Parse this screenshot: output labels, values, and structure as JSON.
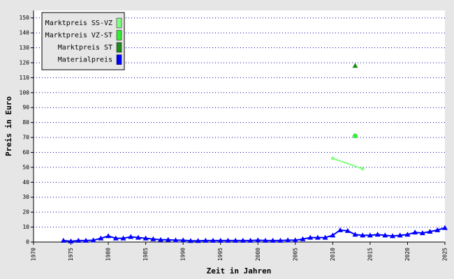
{
  "chart_data": {
    "type": "line",
    "x_label": "Zeit in Jahren",
    "y_label": "Preis in Euro",
    "xlim": [
      1970,
      2025
    ],
    "ylim": [
      0,
      155
    ],
    "xticks": [
      1970,
      1975,
      1980,
      1985,
      1990,
      1995,
      2000,
      2005,
      2010,
      2015,
      2020,
      2025
    ],
    "yticks": [
      0,
      10,
      20,
      30,
      40,
      50,
      60,
      70,
      80,
      90,
      100,
      110,
      120,
      130,
      140,
      150
    ],
    "grid": true,
    "legend": "upper left",
    "series": [
      {
        "name": "Marktpreis SS-VZ",
        "color": "#80ff80",
        "marker": "diamond",
        "x": [
          2010,
          2014
        ],
        "values": [
          56,
          49
        ]
      },
      {
        "name": "Marktpreis VZ-ST",
        "color": "#33ee33",
        "marker": "circle",
        "x": [
          2013
        ],
        "values": [
          71
        ]
      },
      {
        "name": "Marktpreis ST",
        "color": "#1e8c1e",
        "marker": "triangle",
        "x": [
          2013
        ],
        "values": [
          118
        ]
      },
      {
        "name": "Materialpreis",
        "color": "#0000ff",
        "marker": "triangle",
        "x": [
          1974,
          1975,
          1976,
          1977,
          1978,
          1979,
          1980,
          1981,
          1982,
          1983,
          1984,
          1985,
          1986,
          1987,
          1988,
          1989,
          1990,
          1991,
          1992,
          1993,
          1994,
          1995,
          1996,
          1997,
          1998,
          1999,
          2000,
          2001,
          2002,
          2003,
          2004,
          2005,
          2006,
          2007,
          2008,
          2009,
          2010,
          2011,
          2012,
          2013,
          2014,
          2015,
          2016,
          2017,
          2018,
          2019,
          2020,
          2021,
          2022,
          2023,
          2024,
          2025
        ],
        "values": [
          1,
          0.5,
          1,
          1,
          1.2,
          2.5,
          4,
          2.5,
          2.5,
          3.5,
          3,
          2.5,
          2,
          1.5,
          1.5,
          1.2,
          1.2,
          0.8,
          0.8,
          1,
          1,
          1,
          1,
          1,
          1,
          1,
          1.2,
          1,
          1,
          1,
          1.2,
          1.2,
          2,
          3,
          3,
          3,
          4.5,
          8,
          7.5,
          5,
          4.5,
          4.5,
          5,
          4.5,
          4,
          4.5,
          5,
          6.5,
          6,
          7,
          8,
          9.5
        ]
      }
    ]
  }
}
